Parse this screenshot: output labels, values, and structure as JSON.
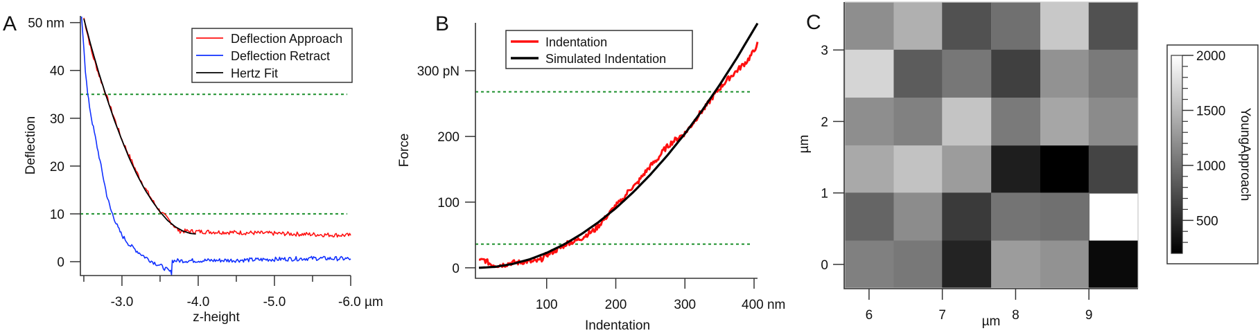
{
  "panels": {
    "a": "A",
    "b": "B",
    "c": "C"
  },
  "chart_data": [
    {
      "type": "line",
      "panel": "A",
      "xlabel": "z-height",
      "ylabel": "Deflection",
      "xlim": [
        -2.455,
        -6.0
      ],
      "ylim": [
        -2.9,
        51.4
      ],
      "xticks": [
        {
          "v": -3.0,
          "label": "-3.0"
        },
        {
          "v": -4.0,
          "label": "-4.0"
        },
        {
          "v": -5.0,
          "label": "-5.0"
        },
        {
          "v": -6.0,
          "label": "-6.0 µm"
        }
      ],
      "xminor": [
        -2.5,
        -3.5,
        -4.5,
        -5.5
      ],
      "yticks": [
        {
          "v": 50,
          "label": "50 nm"
        },
        {
          "v": 40,
          "label": "40"
        },
        {
          "v": 30,
          "label": "30"
        },
        {
          "v": 20,
          "label": "20"
        },
        {
          "v": 10,
          "label": "10"
        },
        {
          "v": 0,
          "label": "0"
        }
      ],
      "hlines": [
        35,
        10
      ],
      "hline_color": "#1a8f2a",
      "legend": "top-right",
      "series": [
        {
          "name": "Deflection Approach",
          "color": "#ff1010",
          "noise": 0.45,
          "x": [
            -2.5,
            -2.55,
            -2.6,
            -2.7,
            -2.8,
            -2.9,
            -3.0,
            -3.1,
            -3.2,
            -3.3,
            -3.4,
            -3.5,
            -3.6,
            -3.7,
            -3.75,
            -3.8,
            -4.0,
            -4.5,
            -5.0,
            -5.5,
            -6.0
          ],
          "y": [
            51,
            47.5,
            44,
            39,
            34.5,
            30,
            25.5,
            22,
            18.5,
            15.5,
            12.8,
            10.5,
            9,
            7.2,
            6.4,
            6.4,
            6.3,
            6.1,
            5.9,
            5.7,
            5.5
          ]
        },
        {
          "name": "Deflection Retract",
          "color": "#1030ff",
          "noise": 0.45,
          "x": [
            -2.47,
            -2.5,
            -2.52,
            -2.55,
            -2.6,
            -2.65,
            -2.7,
            -2.75,
            -2.8,
            -2.85,
            -2.9,
            -2.95,
            -3.0,
            -3.1,
            -3.2,
            -3.3,
            -3.4,
            -3.5,
            -3.6,
            -3.65,
            -3.66,
            -3.8,
            -4.5,
            -5.0,
            -5.5,
            -6.0
          ],
          "y": [
            51,
            45,
            40,
            35,
            30,
            26,
            22,
            18,
            14,
            11,
            9,
            7,
            5.5,
            3.5,
            2.2,
            1,
            0,
            -0.8,
            -1.8,
            -2.3,
            0.2,
            0.2,
            0.3,
            0.5,
            0.7,
            0.6
          ]
        },
        {
          "name": "Hertz Fit",
          "color": "#000000",
          "noise": 0,
          "x": [
            -2.5,
            -2.6,
            -2.7,
            -2.8,
            -2.9,
            -3.0,
            -3.1,
            -3.2,
            -3.3,
            -3.4,
            -3.5,
            -3.6,
            -3.7,
            -3.8,
            -3.9,
            -3.97
          ],
          "y": [
            50.8,
            44.8,
            39.3,
            34.3,
            29.6,
            25.4,
            21.5,
            18.1,
            15.1,
            12.6,
            10.4,
            8.6,
            7.3,
            6.4,
            5.9,
            5.8
          ]
        }
      ]
    },
    {
      "type": "line",
      "panel": "B",
      "xlabel": "Indentation",
      "ylabel": "Force",
      "xlim": [
        -3,
        405
      ],
      "ylim": [
        -16,
        373
      ],
      "xticks": [
        {
          "v": 100,
          "label": "100"
        },
        {
          "v": 200,
          "label": "200"
        },
        {
          "v": 300,
          "label": "300"
        },
        {
          "v": 400,
          "label": "400 nm"
        }
      ],
      "yticks": [
        {
          "v": 300,
          "label": "300 pN"
        },
        {
          "v": 200,
          "label": "200"
        },
        {
          "v": 100,
          "label": "100"
        },
        {
          "v": 0,
          "label": "0"
        }
      ],
      "hlines": [
        268,
        36
      ],
      "hline_color": "#1a8f2a",
      "legend": "top-left",
      "series": [
        {
          "name": "Indentation",
          "color": "#ff1010",
          "noise": 4,
          "x": [
            2,
            10,
            20,
            30,
            40,
            50,
            60,
            70,
            80,
            90,
            100,
            110,
            120,
            130,
            140,
            150,
            160,
            170,
            180,
            190,
            200,
            210,
            220,
            230,
            240,
            250,
            260,
            270,
            280,
            290,
            300,
            310,
            320,
            330,
            340,
            350,
            360,
            370,
            380,
            390,
            400,
            405
          ],
          "y": [
            10,
            12,
            5,
            4,
            5,
            8,
            8,
            10,
            9,
            11,
            20,
            25,
            30,
            38,
            40,
            45,
            52,
            58,
            70,
            82,
            95,
            103,
            120,
            127,
            142,
            155,
            165,
            180,
            190,
            198,
            205,
            218,
            233,
            245,
            260,
            273,
            285,
            295,
            305,
            315,
            330,
            344
          ]
        },
        {
          "name": "Simulated Indentation",
          "color": "#000000",
          "noise": 0,
          "x": [
            2,
            25,
            50,
            75,
            100,
            125,
            150,
            175,
            200,
            225,
            250,
            275,
            300,
            325,
            350,
            375,
            405
          ],
          "y": [
            0,
            1.4,
            5.7,
            12.8,
            22.7,
            35.5,
            51.1,
            69.5,
            90.8,
            114.9,
            141.9,
            171.7,
            204.3,
            239.8,
            278.1,
            319.2,
            372.3
          ]
        }
      ]
    },
    {
      "type": "heatmap",
      "panel": "C",
      "xlabel": "µm",
      "ylabel": "µm",
      "xlim": [
        5.67,
        9.67
      ],
      "ylim": [
        -0.33,
        3.67
      ],
      "xticks": [
        {
          "v": 6,
          "label": "6"
        },
        {
          "v": 7,
          "label": "7"
        },
        {
          "v": 8,
          "label": "8"
        },
        {
          "v": 9,
          "label": "9"
        }
      ],
      "yticks": [
        {
          "v": 0,
          "label": "0"
        },
        {
          "v": 1,
          "label": "1"
        },
        {
          "v": 2,
          "label": "2"
        },
        {
          "v": 3,
          "label": "3"
        }
      ],
      "x_centers": [
        6.0,
        6.67,
        7.33,
        8.0,
        8.67,
        9.33
      ],
      "y_centers_top_to_bottom": [
        3.33,
        2.67,
        2.0,
        1.33,
        0.67,
        0.0
      ],
      "values": [
        [
          1200,
          1440,
          770,
          990,
          1610,
          770
        ],
        [
          1700,
          850,
          1040,
          650,
          1230,
          1060
        ],
        [
          1200,
          1110,
          1580,
          1060,
          1370,
          1180
        ],
        [
          1390,
          1570,
          1300,
          410,
          200,
          680
        ],
        [
          910,
          1190,
          610,
          1020,
          990,
          null
        ],
        [
          1100,
          1050,
          450,
          1300,
          1230,
          270
        ]
      ],
      "colorscale": "grays",
      "colorbar": {
        "label": "YoungApproach",
        "range": [
          200,
          2000
        ],
        "ticks": [
          {
            "v": 2000,
            "label": "2000"
          },
          {
            "v": 1500,
            "label": "1500"
          },
          {
            "v": 1000,
            "label": "1000"
          },
          {
            "v": 500,
            "label": "500"
          }
        ]
      }
    }
  ]
}
